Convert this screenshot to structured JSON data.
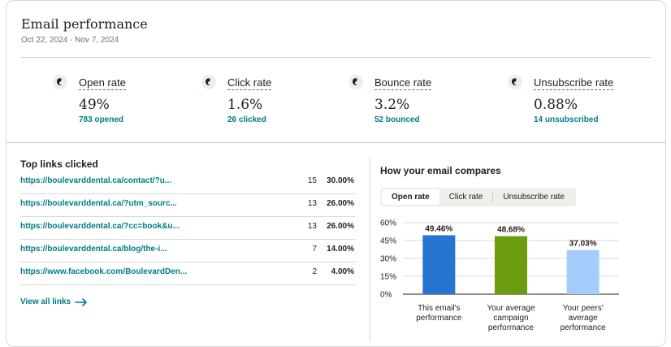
{
  "header": {
    "title": "Email performance",
    "date_range": "Oct 22, 2024 - Nov 7, 2024"
  },
  "stats": [
    {
      "icon": "mailchimp-logo-icon",
      "label": "Open rate",
      "value": "49%",
      "sub": "783 opened"
    },
    {
      "icon": "mailchimp-logo-icon",
      "label": "Click rate",
      "value": "1.6%",
      "sub": "26 clicked"
    },
    {
      "icon": "mailchimp-logo-icon",
      "label": "Bounce rate",
      "value": "3.2%",
      "sub": "52 bounced"
    },
    {
      "icon": "mailchimp-logo-icon",
      "label": "Unsubscribe rate",
      "value": "0.88%",
      "sub": "14 unsubscribed"
    }
  ],
  "top_links": {
    "title": "Top links clicked",
    "rows": [
      {
        "url": "https://boulevarddental.ca/contact/?u...",
        "count": "15",
        "pct": "30.00%"
      },
      {
        "url": "https://boulevarddental.ca/?utm_sourc...",
        "count": "13",
        "pct": "26.00%"
      },
      {
        "url": "https://boulevarddental.ca/?cc=book&u...",
        "count": "13",
        "pct": "26.00%"
      },
      {
        "url": "https://boulevarddental.ca/blog/the-i...",
        "count": "7",
        "pct": "14.00%"
      },
      {
        "url": "https://www.facebook.com/BoulevardDen...",
        "count": "2",
        "pct": "4.00%"
      }
    ],
    "view_all": "View all links"
  },
  "compare": {
    "title": "How your email compares",
    "tabs": [
      "Open rate",
      "Click rate",
      "Unsubscribe rate"
    ],
    "active_tab": "Open rate"
  },
  "chart_data": {
    "type": "bar",
    "categories": [
      [
        "This email's",
        "performance"
      ],
      [
        "Your average",
        "campaign",
        "performance"
      ],
      [
        "Your peers'",
        "average",
        "performance"
      ]
    ],
    "values": [
      49.46,
      48.68,
      37.03
    ],
    "data_labels": [
      "49.46%",
      "48.68%",
      "37.03%"
    ],
    "colors": [
      "#2675d0",
      "#6b9b0e",
      "#a4cdfc"
    ],
    "y_ticks": [
      "0%",
      "15%",
      "30%",
      "45%",
      "60%"
    ],
    "ylim": [
      0,
      60
    ],
    "grid": true
  },
  "colors": {
    "accent": "#007c89",
    "text": "#241c15",
    "muted": "#6e6e6e"
  }
}
